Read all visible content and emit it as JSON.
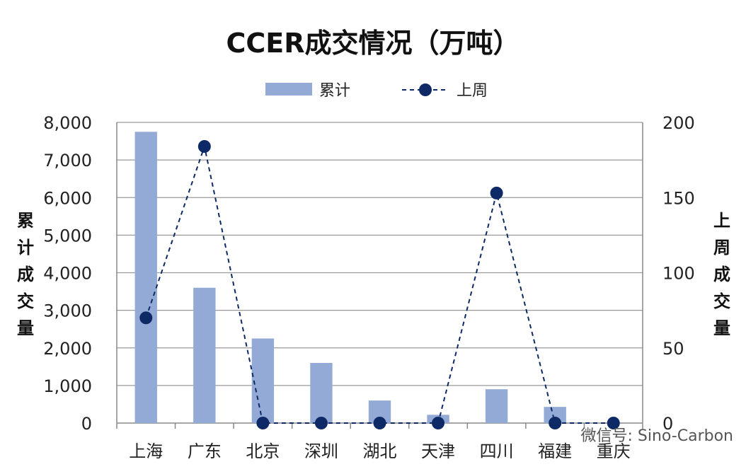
{
  "chart_data": {
    "type": "bar",
    "title": "CCER成交情况（万吨）",
    "categories": [
      "上海",
      "广东",
      "北京",
      "深圳",
      "湖北",
      "天津",
      "四川",
      "福建",
      "重庆"
    ],
    "series": [
      {
        "name": "累计",
        "type": "bar",
        "axis": "left",
        "color": "#93aad6",
        "values": [
          7750,
          3600,
          2250,
          1600,
          600,
          220,
          900,
          430,
          0
        ]
      },
      {
        "name": "上周",
        "type": "line",
        "axis": "right",
        "color": "#0e2a66",
        "values": [
          70,
          184,
          0,
          0,
          0,
          0,
          153,
          0,
          0
        ]
      }
    ],
    "yleft": {
      "label": "累计成交量",
      "lim": [
        0,
        8000
      ],
      "ticks": [
        "0",
        "1,000",
        "2,000",
        "3,000",
        "4,000",
        "5,000",
        "6,000",
        "7,000",
        "8,000"
      ]
    },
    "yright": {
      "label": "上周成交量",
      "lim": [
        0,
        200
      ],
      "ticks": [
        "0",
        "50",
        "100",
        "150",
        "200"
      ]
    },
    "legend": "top",
    "grid": true
  },
  "watermark": "微信号: Sino-Carbon"
}
